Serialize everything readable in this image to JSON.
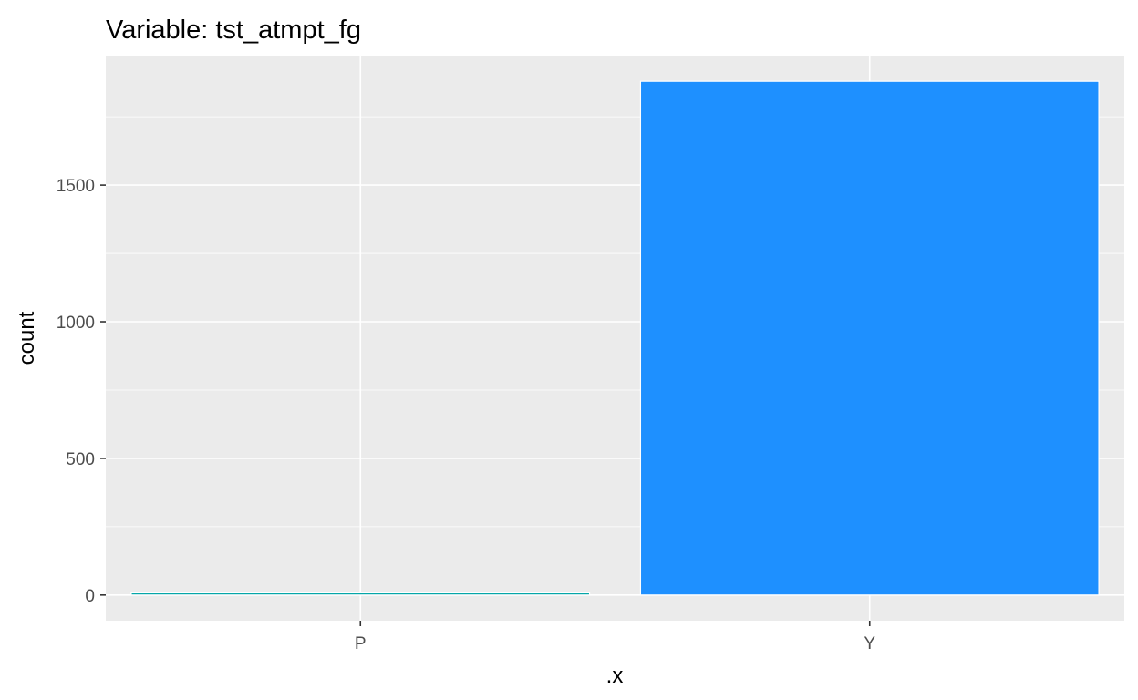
{
  "chart_data": {
    "type": "bar",
    "title": "Variable: tst_atmpt_fg",
    "xlabel": ".x",
    "ylabel": "count",
    "categories": [
      "P",
      "Y"
    ],
    "values": [
      8,
      1880
    ],
    "ylim": [
      -94,
      1974
    ],
    "yticks": [
      0,
      500,
      1000,
      1500
    ],
    "y_minor_ticks": [
      250,
      750,
      1250,
      1750
    ],
    "ytick_labels": [
      "0",
      "500",
      "1000",
      "1500"
    ],
    "colors": {
      "panel_background": "#ebebeb",
      "grid": "#ffffff",
      "bars": [
        "#00a4a6",
        "#1e90ff"
      ],
      "bar_outline": "#ffffff",
      "tick_text": "#4d4d4d",
      "tick_mark": "#333333"
    },
    "grid": true,
    "legend": "none"
  }
}
